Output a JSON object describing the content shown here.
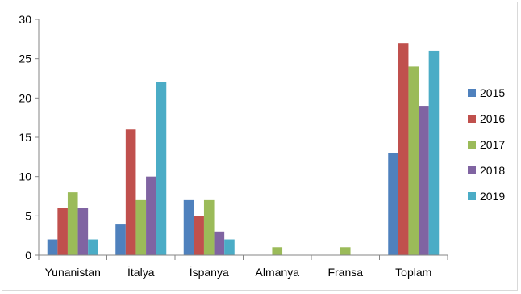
{
  "chart_data": {
    "type": "bar",
    "title": "",
    "xlabel": "",
    "ylabel": "",
    "ylim": [
      0,
      30
    ],
    "yticks": [
      0,
      5,
      10,
      15,
      20,
      25,
      30
    ],
    "grid": false,
    "legend_position": "right",
    "categories": [
      "Yunanistan",
      "İtalya",
      "İspanya",
      "Almanya",
      "Fransa",
      "Toplam"
    ],
    "series": [
      {
        "name": "2015",
        "color": "#4F81BD",
        "values": [
          2,
          4,
          7,
          0,
          0,
          13
        ]
      },
      {
        "name": "2016",
        "color": "#C0504D",
        "values": [
          6,
          16,
          5,
          0,
          0,
          27
        ]
      },
      {
        "name": "2017",
        "color": "#9BBB59",
        "values": [
          8,
          7,
          7,
          1,
          1,
          24
        ]
      },
      {
        "name": "2018",
        "color": "#8064A2",
        "values": [
          6,
          10,
          3,
          0,
          0,
          19
        ]
      },
      {
        "name": "2019",
        "color": "#4BACC6",
        "values": [
          2,
          22,
          2,
          0,
          0,
          26
        ]
      }
    ]
  }
}
